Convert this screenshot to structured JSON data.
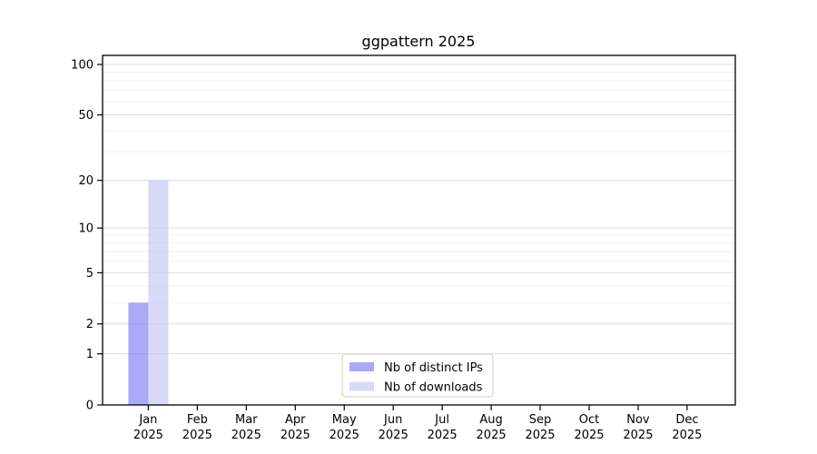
{
  "chart_data": {
    "type": "bar",
    "title": "ggpattern 2025",
    "categories": [
      "Jan",
      "Feb",
      "Mar",
      "Apr",
      "May",
      "Jun",
      "Jul",
      "Aug",
      "Sep",
      "Oct",
      "Nov",
      "Dec"
    ],
    "category_year": "2025",
    "series": [
      {
        "name": "Nb of distinct IPs",
        "color_base": "#7171f3",
        "color_rendered": "#aaaaf8",
        "fill_opacity": 0.6,
        "values": [
          3,
          0,
          0,
          0,
          0,
          0,
          0,
          0,
          0,
          0,
          0,
          0
        ]
      },
      {
        "name": "Nb of downloads",
        "color_base": "#c0c0f3",
        "color_rendered": "#d9d9f8",
        "fill_opacity": 0.6,
        "values": [
          20,
          0,
          0,
          0,
          0,
          0,
          0,
          0,
          0,
          0,
          0,
          0
        ]
      }
    ],
    "xlabel": "",
    "ylabel": "",
    "y_axis": {
      "scale": "log1p",
      "major_ticks": [
        0,
        1,
        2,
        5,
        10,
        20,
        50,
        100
      ],
      "minor_gridlines": [
        3,
        4,
        6,
        7,
        8,
        9,
        30,
        40,
        60,
        70,
        80,
        90
      ],
      "ylim": [
        0,
        100
      ]
    },
    "grid": true,
    "legend": {
      "position": "lower center inside",
      "entries": [
        "Nb of distinct IPs",
        "Nb of downloads"
      ]
    },
    "colors": {
      "major_grid": "#dcdcdc",
      "minor_grid": "#f2f2f2",
      "axis_line": "#000000",
      "legend_border": "#cccccc",
      "legend_background": "#ffffff",
      "text": "#000000"
    }
  }
}
